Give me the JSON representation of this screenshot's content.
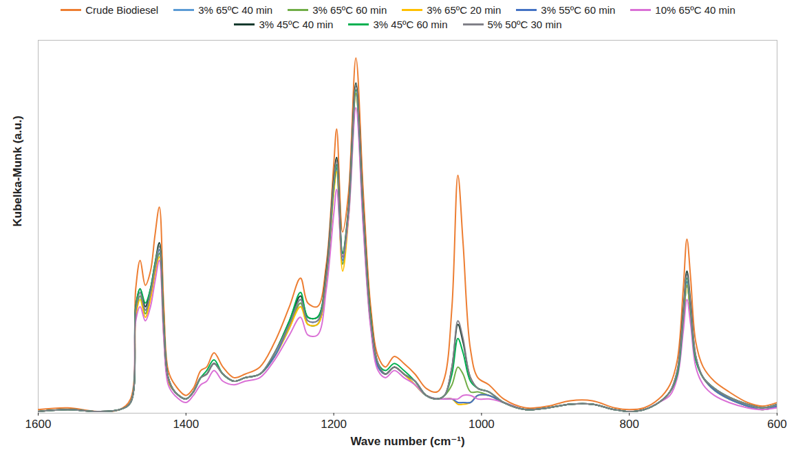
{
  "chart_data": {
    "type": "line",
    "xlabel": "Wave number (cm⁻¹)",
    "ylabel": "Kubelka-Munk (a.u.)",
    "xlim": [
      1600,
      600
    ],
    "xticks": [
      1600,
      1400,
      1200,
      1000,
      800,
      600
    ],
    "ylim": [
      0,
      1.05
    ],
    "yticks": [],
    "tick_labels": "x",
    "grid": false,
    "legend": "top",
    "x": [
      1600,
      1560,
      1520,
      1490,
      1475,
      1468,
      1462,
      1455,
      1448,
      1442,
      1436,
      1430,
      1424,
      1415,
      1400,
      1390,
      1380,
      1372,
      1362,
      1350,
      1335,
      1320,
      1300,
      1280,
      1260,
      1245,
      1235,
      1222,
      1210,
      1200,
      1196,
      1188,
      1180,
      1170,
      1160,
      1150,
      1140,
      1130,
      1118,
      1105,
      1090,
      1075,
      1060,
      1050,
      1040,
      1032,
      1025,
      1015,
      1005,
      990,
      970,
      940,
      910,
      880,
      850,
      820,
      800,
      780,
      760,
      745,
      735,
      727,
      722,
      717,
      710,
      700,
      685,
      665,
      640,
      620,
      600
    ],
    "series": [
      {
        "name": "Crude Biodiesel",
        "color": "#ED7D31",
        "values": [
          0.01,
          0.015,
          0.005,
          0.01,
          0.04,
          0.35,
          0.43,
          0.36,
          0.4,
          0.5,
          0.58,
          0.3,
          0.12,
          0.08,
          0.05,
          0.07,
          0.12,
          0.13,
          0.17,
          0.13,
          0.1,
          0.11,
          0.13,
          0.2,
          0.3,
          0.38,
          0.31,
          0.3,
          0.42,
          0.7,
          0.8,
          0.51,
          0.62,
          1.0,
          0.62,
          0.3,
          0.16,
          0.13,
          0.16,
          0.14,
          0.11,
          0.07,
          0.06,
          0.1,
          0.3,
          0.67,
          0.48,
          0.18,
          0.1,
          0.08,
          0.04,
          0.015,
          0.02,
          0.035,
          0.035,
          0.015,
          0.01,
          0.015,
          0.04,
          0.08,
          0.15,
          0.35,
          0.49,
          0.38,
          0.2,
          0.13,
          0.09,
          0.06,
          0.03,
          0.02,
          0.03
        ]
      },
      {
        "name": "3% 65ºC 40 min",
        "color": "#5B9BD5",
        "values": [
          0.005,
          0.01,
          0.005,
          0.01,
          0.03,
          0.28,
          0.33,
          0.28,
          0.33,
          0.4,
          0.45,
          0.23,
          0.09,
          0.06,
          0.04,
          0.06,
          0.1,
          0.11,
          0.14,
          0.11,
          0.09,
          0.1,
          0.11,
          0.16,
          0.24,
          0.31,
          0.25,
          0.25,
          0.38,
          0.63,
          0.69,
          0.42,
          0.56,
          0.9,
          0.55,
          0.25,
          0.13,
          0.11,
          0.13,
          0.11,
          0.08,
          0.05,
          0.04,
          0.04,
          0.04,
          0.03,
          0.03,
          0.03,
          0.05,
          0.05,
          0.03,
          0.01,
          0.015,
          0.025,
          0.025,
          0.01,
          0.005,
          0.01,
          0.03,
          0.06,
          0.11,
          0.26,
          0.36,
          0.28,
          0.15,
          0.1,
          0.065,
          0.04,
          0.02,
          0.01,
          0.02
        ]
      },
      {
        "name": "3% 65ºC 60 min",
        "color": "#70AD47",
        "values": [
          0.005,
          0.01,
          0.005,
          0.01,
          0.03,
          0.28,
          0.33,
          0.28,
          0.33,
          0.4,
          0.45,
          0.23,
          0.09,
          0.06,
          0.04,
          0.06,
          0.1,
          0.11,
          0.14,
          0.11,
          0.09,
          0.1,
          0.11,
          0.16,
          0.24,
          0.31,
          0.25,
          0.25,
          0.38,
          0.63,
          0.69,
          0.42,
          0.56,
          0.9,
          0.55,
          0.25,
          0.13,
          0.11,
          0.13,
          0.11,
          0.08,
          0.05,
          0.04,
          0.05,
          0.08,
          0.13,
          0.11,
          0.06,
          0.06,
          0.05,
          0.03,
          0.01,
          0.015,
          0.025,
          0.025,
          0.01,
          0.005,
          0.01,
          0.03,
          0.06,
          0.11,
          0.26,
          0.36,
          0.28,
          0.15,
          0.1,
          0.065,
          0.04,
          0.02,
          0.01,
          0.02
        ]
      },
      {
        "name": "3% 65ºC 20 min",
        "color": "#FFC000",
        "values": [
          0.005,
          0.01,
          0.005,
          0.01,
          0.03,
          0.27,
          0.32,
          0.27,
          0.32,
          0.39,
          0.44,
          0.22,
          0.09,
          0.06,
          0.04,
          0.06,
          0.1,
          0.11,
          0.14,
          0.11,
          0.09,
          0.1,
          0.11,
          0.16,
          0.24,
          0.3,
          0.25,
          0.25,
          0.38,
          0.62,
          0.68,
          0.4,
          0.55,
          0.9,
          0.54,
          0.25,
          0.13,
          0.11,
          0.13,
          0.11,
          0.08,
          0.05,
          0.04,
          0.04,
          0.04,
          0.025,
          0.025,
          0.03,
          0.05,
          0.05,
          0.03,
          0.01,
          0.015,
          0.025,
          0.025,
          0.01,
          0.005,
          0.01,
          0.03,
          0.06,
          0.11,
          0.26,
          0.36,
          0.28,
          0.15,
          0.1,
          0.065,
          0.04,
          0.02,
          0.01,
          0.02
        ]
      },
      {
        "name": "3% 55ºC 60 min",
        "color": "#4472C4",
        "values": [
          0.005,
          0.01,
          0.005,
          0.01,
          0.03,
          0.29,
          0.34,
          0.29,
          0.34,
          0.41,
          0.46,
          0.24,
          0.1,
          0.06,
          0.04,
          0.06,
          0.1,
          0.11,
          0.14,
          0.11,
          0.09,
          0.1,
          0.11,
          0.16,
          0.25,
          0.32,
          0.26,
          0.26,
          0.39,
          0.64,
          0.7,
          0.43,
          0.57,
          0.91,
          0.55,
          0.26,
          0.13,
          0.11,
          0.13,
          0.11,
          0.09,
          0.05,
          0.04,
          0.04,
          0.04,
          0.03,
          0.03,
          0.03,
          0.05,
          0.05,
          0.03,
          0.01,
          0.015,
          0.025,
          0.025,
          0.01,
          0.005,
          0.01,
          0.03,
          0.06,
          0.11,
          0.27,
          0.37,
          0.29,
          0.15,
          0.1,
          0.065,
          0.04,
          0.02,
          0.01,
          0.02
        ]
      },
      {
        "name": "10% 65ºC 40 min",
        "color": "#DA70D6",
        "values": [
          0.005,
          0.01,
          0.005,
          0.01,
          0.03,
          0.26,
          0.3,
          0.26,
          0.3,
          0.37,
          0.43,
          0.21,
          0.08,
          0.05,
          0.03,
          0.05,
          0.08,
          0.09,
          0.12,
          0.09,
          0.08,
          0.09,
          0.1,
          0.15,
          0.22,
          0.27,
          0.22,
          0.22,
          0.35,
          0.56,
          0.63,
          0.44,
          0.55,
          0.86,
          0.52,
          0.24,
          0.12,
          0.1,
          0.12,
          0.1,
          0.08,
          0.05,
          0.04,
          0.04,
          0.04,
          0.04,
          0.05,
          0.05,
          0.04,
          0.04,
          0.03,
          0.01,
          0.015,
          0.025,
          0.025,
          0.01,
          0.005,
          0.01,
          0.03,
          0.05,
          0.1,
          0.23,
          0.32,
          0.25,
          0.13,
          0.08,
          0.05,
          0.03,
          0.015,
          0.01,
          0.015
        ]
      },
      {
        "name": "3% 45ºC 40 min",
        "color": "#163A2E",
        "values": [
          0.005,
          0.01,
          0.005,
          0.01,
          0.03,
          0.3,
          0.35,
          0.3,
          0.35,
          0.42,
          0.48,
          0.25,
          0.1,
          0.06,
          0.04,
          0.06,
          0.1,
          0.11,
          0.14,
          0.11,
          0.09,
          0.1,
          0.11,
          0.17,
          0.26,
          0.33,
          0.27,
          0.27,
          0.4,
          0.66,
          0.72,
          0.45,
          0.58,
          0.93,
          0.57,
          0.27,
          0.14,
          0.11,
          0.13,
          0.11,
          0.09,
          0.05,
          0.04,
          0.05,
          0.13,
          0.25,
          0.2,
          0.1,
          0.07,
          0.06,
          0.03,
          0.01,
          0.015,
          0.025,
          0.025,
          0.01,
          0.005,
          0.01,
          0.03,
          0.06,
          0.12,
          0.29,
          0.4,
          0.31,
          0.16,
          0.1,
          0.07,
          0.045,
          0.025,
          0.015,
          0.025
        ]
      },
      {
        "name": "3% 45ºC 60 min",
        "color": "#00B050",
        "values": [
          0.005,
          0.01,
          0.005,
          0.01,
          0.03,
          0.3,
          0.35,
          0.31,
          0.35,
          0.42,
          0.47,
          0.25,
          0.1,
          0.06,
          0.04,
          0.06,
          0.1,
          0.12,
          0.15,
          0.11,
          0.09,
          0.1,
          0.11,
          0.17,
          0.26,
          0.34,
          0.27,
          0.27,
          0.39,
          0.64,
          0.7,
          0.45,
          0.57,
          0.91,
          0.56,
          0.27,
          0.14,
          0.12,
          0.14,
          0.12,
          0.09,
          0.05,
          0.04,
          0.05,
          0.11,
          0.21,
          0.17,
          0.09,
          0.07,
          0.06,
          0.03,
          0.01,
          0.015,
          0.025,
          0.025,
          0.01,
          0.005,
          0.01,
          0.03,
          0.06,
          0.11,
          0.27,
          0.38,
          0.29,
          0.15,
          0.1,
          0.07,
          0.045,
          0.025,
          0.015,
          0.025
        ]
      },
      {
        "name": "5% 50ºC 30 min",
        "color": "#808088",
        "values": [
          0.005,
          0.01,
          0.005,
          0.01,
          0.03,
          0.29,
          0.34,
          0.29,
          0.34,
          0.41,
          0.47,
          0.24,
          0.1,
          0.06,
          0.04,
          0.06,
          0.1,
          0.11,
          0.14,
          0.11,
          0.09,
          0.1,
          0.11,
          0.17,
          0.25,
          0.32,
          0.26,
          0.26,
          0.39,
          0.65,
          0.71,
          0.44,
          0.57,
          0.92,
          0.56,
          0.26,
          0.14,
          0.11,
          0.13,
          0.11,
          0.09,
          0.05,
          0.04,
          0.05,
          0.13,
          0.26,
          0.21,
          0.1,
          0.07,
          0.06,
          0.03,
          0.01,
          0.015,
          0.025,
          0.025,
          0.01,
          0.005,
          0.01,
          0.03,
          0.06,
          0.12,
          0.28,
          0.39,
          0.3,
          0.16,
          0.1,
          0.07,
          0.045,
          0.025,
          0.015,
          0.025
        ]
      }
    ]
  }
}
